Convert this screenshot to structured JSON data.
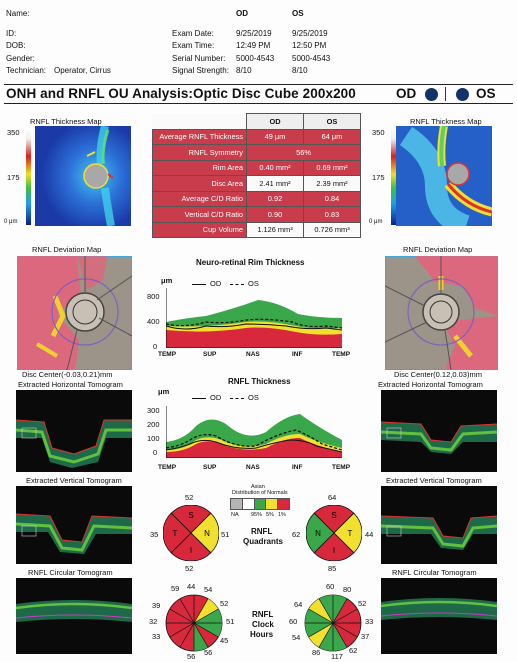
{
  "header": {
    "name_label": "Name:",
    "id_label": "ID:",
    "dob_label": "DOB:",
    "gender_label": "Gender:",
    "technician_label": "Technician:",
    "technician_value": "Operator, Cirrus",
    "exam_date_label": "Exam Date:",
    "exam_time_label": "Exam Time:",
    "serial_label": "Serial Number:",
    "signal_label": "Signal Strength:",
    "od": "OD",
    "os": "OS",
    "od_exam_date": "9/25/2019",
    "os_exam_date": "9/25/2019",
    "od_exam_time": "12:49 PM",
    "os_exam_time": "12:50 PM",
    "od_serial": "5000-4543",
    "os_serial": "5000-4543",
    "od_signal": "8/10",
    "os_signal": "8/10"
  },
  "title": "ONH and RNFL OU Analysis:Optic Disc Cube 200x200",
  "title_od": "OD",
  "title_os": "OS",
  "thickness_map_label": "RNFL Thickness Map",
  "scale": {
    "top": "350",
    "mid": "175",
    "bottom": "0 μm"
  },
  "params": {
    "col_od": "OD",
    "col_os": "OS",
    "rows": [
      {
        "name": "Average RNFL Thickness",
        "od": "49 μm",
        "os": "64 μm"
      },
      {
        "name": "RNFL Symmetry",
        "span": "56%"
      },
      {
        "name": "Rim Area",
        "od": "0.40 mm²",
        "os": "0.69 mm²"
      },
      {
        "name": "Disc Area",
        "od": "2.41 mm²",
        "os": "2.39 mm²"
      },
      {
        "name": "Average C/D Ratio",
        "od": "0.92",
        "os": "0.84"
      },
      {
        "name": "Vertical C/D Ratio",
        "od": "0.90",
        "os": "0.83"
      },
      {
        "name": "Cup Volume",
        "od": "1.126 mm³",
        "os": "0.726 mm³"
      }
    ]
  },
  "deviation_label": "RNFL Deviation Map",
  "od_disc_center": "Disc Center(-0.03,0.21)mm",
  "os_disc_center": "Disc Center(0.12,0.03)mm",
  "horiz_tomo_label": "Extracted Horizontal Tomogram",
  "vert_tomo_label": "Extracted Vertical Tomogram",
  "circ_tomo_label": "RNFL Circular Tomogram",
  "rim_chart": {
    "title": "Neuro-retinal Rim Thickness",
    "unit": "μm",
    "legend_od": "OD",
    "legend_os": "OS",
    "yticks": [
      "800",
      "400",
      "0"
    ],
    "xticks": [
      "TEMP",
      "SUP",
      "NAS",
      "INF",
      "TEMP"
    ]
  },
  "rnfl_chart": {
    "title": "RNFL Thickness",
    "unit": "μm",
    "legend_od": "OD",
    "legend_os": "OS",
    "yticks": [
      "300",
      "200",
      "100",
      "0"
    ],
    "xticks": [
      "TEMP",
      "SUP",
      "NAS",
      "INF",
      "TEMP"
    ]
  },
  "legend": {
    "title1": "Asian",
    "title2": "Distribution of Normals",
    "labels": [
      "NA",
      "95%",
      "5%",
      "1%"
    ],
    "colors": [
      "#b4b4b4",
      "#ffffff",
      "#3aa84a",
      "#f2e030",
      "#d8283c"
    ]
  },
  "quadrants": {
    "label1": "RNFL",
    "label2": "Quadrants",
    "od": {
      "S": "52",
      "N": "51",
      "I": "52",
      "T": "35"
    },
    "os": {
      "S": "64",
      "N": "62",
      "I": "85",
      "T": "44"
    }
  },
  "clock": {
    "label1": "RNFL",
    "label2": "Clock",
    "label3": "Hours",
    "od_values": [
      "44",
      "54",
      "52",
      "51",
      "45",
      "56",
      "56",
      "33",
      "32",
      "39",
      "59"
    ],
    "os_values": [
      "60",
      "80",
      "52",
      "33",
      "37",
      "62",
      "117",
      "86",
      "54",
      "60",
      "64"
    ]
  }
}
